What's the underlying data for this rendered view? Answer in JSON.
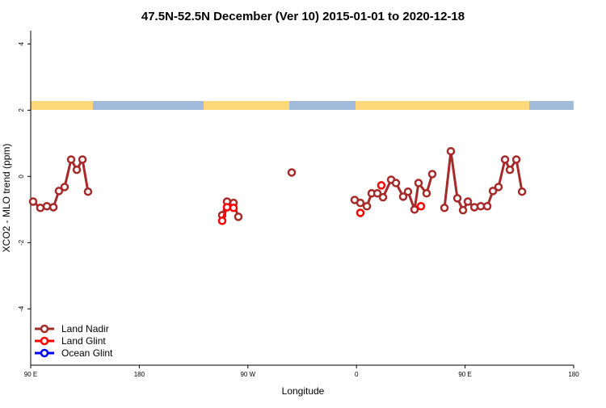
{
  "chart_data": {
    "type": "line",
    "title": "47.5N-52.5N December (Ver 10)   2015-01-01 to 2020-12-18",
    "xlabel": "Longitude",
    "ylabel": "XCO2 - MLO trend (ppm)",
    "xlim": [
      90,
      540
    ],
    "ylim": [
      -5.7,
      4.4
    ],
    "xticks": [
      {
        "value": 90,
        "label": "90 E"
      },
      180,
      {
        "value": 270,
        "label": "90 W"
      },
      {
        "value": 360,
        "label": "0"
      },
      {
        "value": 450,
        "label": "90 E"
      },
      {
        "value": 540,
        "label": "180"
      }
    ],
    "yticks": [
      4,
      2,
      0,
      -2,
      -4
    ],
    "legend": "bottom-left",
    "series": [
      {
        "name": "Land Nadir",
        "color": "#a52a2a",
        "x": [
          92.0,
          98.0,
          103.4,
          108.8,
          113.4,
          118.1,
          123.5,
          128.2,
          132.9,
          137.5,
          null,
          248.7,
          252.7,
          258.1,
          262.1,
          null,
          306.3,
          null,
          358.5,
          363.2,
          368.6,
          372.6,
          377.3,
          382.0,
          388.7,
          392.7,
          398.7,
          402.7,
          408.1,
          411.4,
          418.1,
          422.8,
          null,
          432.9,
          438.2,
          443.6,
          448.3,
          452.3,
          457.7,
          463.0,
          468.4,
          473.1,
          477.7,
          483.1,
          487.1,
          492.5,
          497.2
        ],
        "values": [
          -0.76,
          -0.95,
          -0.9,
          -0.93,
          -0.44,
          -0.32,
          0.51,
          0.2,
          0.51,
          -0.46,
          null,
          -1.17,
          -0.76,
          -0.8,
          -1.22,
          null,
          0.12,
          null,
          -0.71,
          -0.8,
          -0.9,
          -0.51,
          -0.51,
          -0.63,
          -0.1,
          -0.2,
          -0.61,
          -0.46,
          -1.0,
          -0.2,
          -0.51,
          0.07,
          null,
          -0.95,
          0.76,
          -0.66,
          -1.02,
          -0.76,
          -0.93,
          -0.9,
          -0.9,
          -0.44,
          -0.32,
          0.51,
          0.2,
          0.51,
          -0.46
        ]
      },
      {
        "name": "Land Glint",
        "color": "#ff0000",
        "x": [
          248.7,
          252.7,
          258.1,
          null,
          363.2,
          null,
          380.6,
          null,
          413.4
        ],
        "values": [
          -1.34,
          -0.93,
          -0.95,
          null,
          -1.1,
          null,
          -0.27,
          null,
          -0.9
        ]
      },
      {
        "name": "Ocean Glint",
        "color": "#0000ff",
        "x": [],
        "values": []
      }
    ]
  }
}
